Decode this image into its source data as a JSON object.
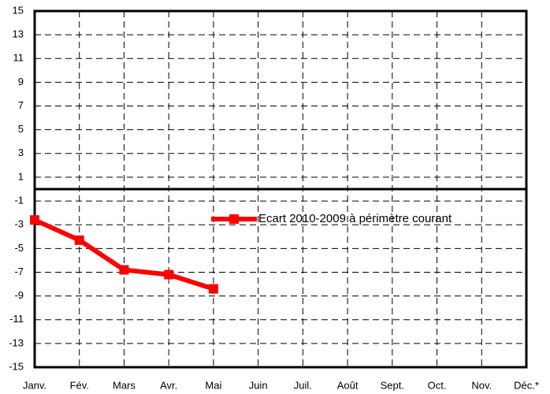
{
  "chart_data": {
    "type": "line",
    "categories": [
      "Janv.",
      "Fév.",
      "Mars",
      "Avr.",
      "Mai",
      "Juin",
      "Juil.",
      "Août",
      "Sept.",
      "Oct.",
      "Nov.",
      "Déc.*"
    ],
    "series": [
      {
        "name": "Ecart 2010-2009 à périmètre courant",
        "color": "#ff0000",
        "values": [
          -2.6,
          -4.3,
          -6.8,
          -7.2,
          -8.4,
          null,
          null,
          null,
          null,
          null,
          null,
          null
        ]
      }
    ],
    "ylim": [
      -15,
      15
    ],
    "yticks": [
      -15,
      -13,
      -11,
      -9,
      -7,
      -5,
      -3,
      -1,
      1,
      3,
      5,
      7,
      9,
      11,
      13,
      15
    ],
    "grid": true
  }
}
